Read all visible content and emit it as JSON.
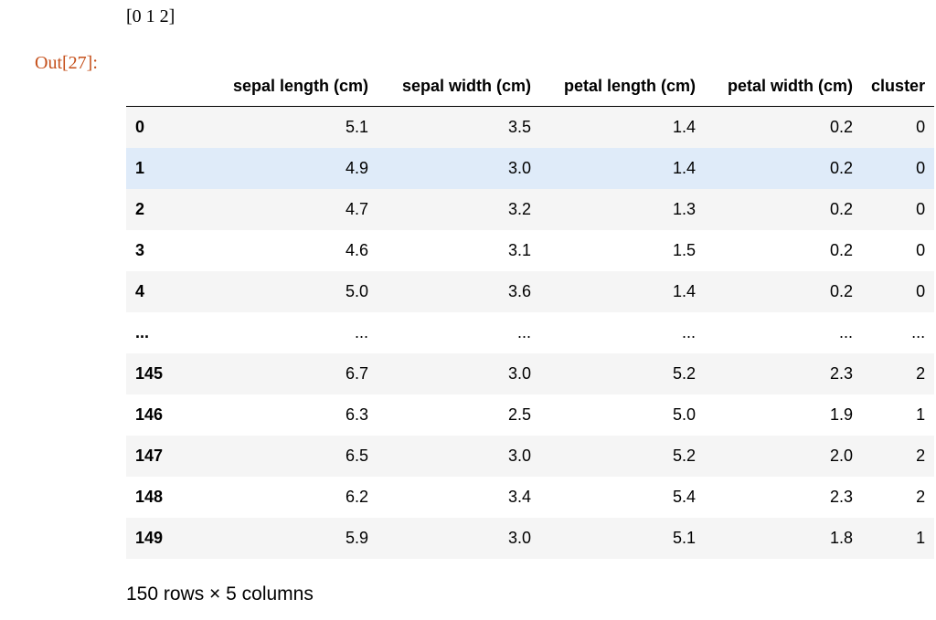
{
  "cell": {
    "stream_output": "[0 1 2]",
    "out_prompt": "Out[27]:",
    "columns": [
      "sepal length (cm)",
      "sepal width (cm)",
      "petal length (cm)",
      "petal width (cm)",
      "cluster"
    ],
    "rows": [
      {
        "index": "0",
        "values": [
          "5.1",
          "3.5",
          "1.4",
          "0.2",
          "0"
        ]
      },
      {
        "index": "1",
        "values": [
          "4.9",
          "3.0",
          "1.4",
          "0.2",
          "0"
        ]
      },
      {
        "index": "2",
        "values": [
          "4.7",
          "3.2",
          "1.3",
          "0.2",
          "0"
        ]
      },
      {
        "index": "3",
        "values": [
          "4.6",
          "3.1",
          "1.5",
          "0.2",
          "0"
        ]
      },
      {
        "index": "4",
        "values": [
          "5.0",
          "3.6",
          "1.4",
          "0.2",
          "0"
        ]
      },
      {
        "index": "...",
        "values": [
          "...",
          "...",
          "...",
          "...",
          "..."
        ]
      },
      {
        "index": "145",
        "values": [
          "6.7",
          "3.0",
          "5.2",
          "2.3",
          "2"
        ]
      },
      {
        "index": "146",
        "values": [
          "6.3",
          "2.5",
          "5.0",
          "1.9",
          "1"
        ]
      },
      {
        "index": "147",
        "values": [
          "6.5",
          "3.0",
          "5.2",
          "2.0",
          "2"
        ]
      },
      {
        "index": "148",
        "values": [
          "6.2",
          "3.4",
          "5.4",
          "2.3",
          "2"
        ]
      },
      {
        "index": "149",
        "values": [
          "5.9",
          "3.0",
          "5.1",
          "1.8",
          "1"
        ]
      }
    ],
    "hovered_row": 1,
    "shape_note": "150 rows × 5 columns",
    "colors": {
      "prompt": "#c5501b",
      "row_stripe": "#f5f5f5",
      "row_hover": "#dfebf9"
    }
  }
}
